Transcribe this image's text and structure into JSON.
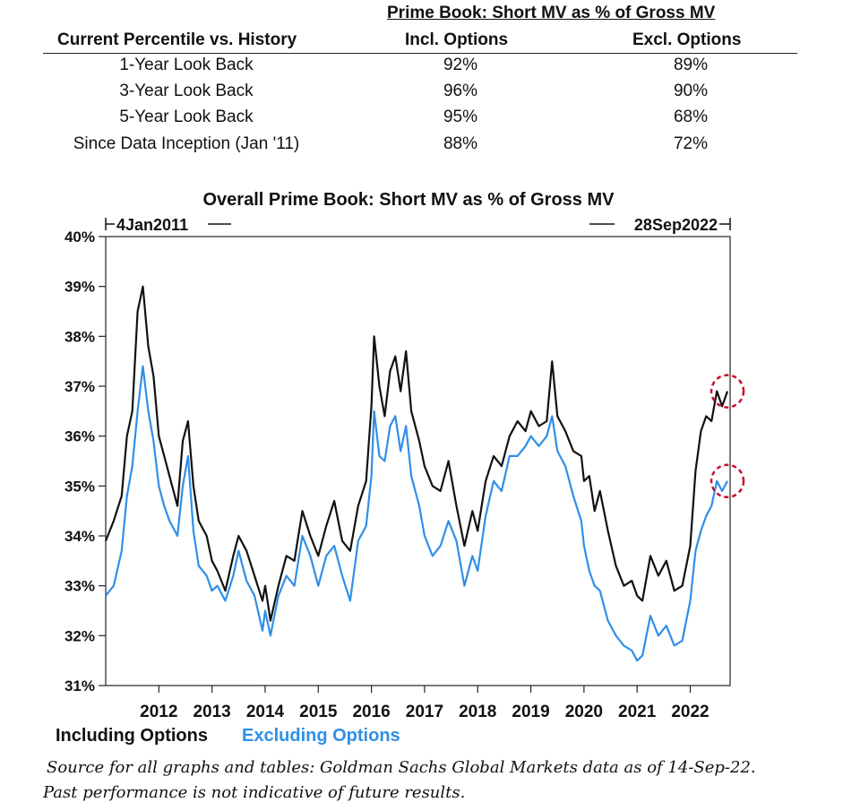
{
  "table": {
    "title": "Prime Book: Short MV as % of Gross MV",
    "header": [
      "Current Percentile vs. History",
      "Incl. Options",
      "Excl. Options"
    ],
    "rows": [
      {
        "label": "1-Year Look Back",
        "incl": "92%",
        "excl": "89%"
      },
      {
        "label": "3-Year Look Back",
        "incl": "96%",
        "excl": "90%"
      },
      {
        "label": "5-Year Look Back",
        "incl": "95%",
        "excl": "68%"
      },
      {
        "label": "Since Data Inception (Jan '11)",
        "incl": "88%",
        "excl": "72%"
      }
    ]
  },
  "legend": {
    "including": "Including Options",
    "excluding": "Excluding Options"
  },
  "footnote": {
    "line1": "Source for all graphs and tables: Goldman Sachs Global Markets data as of 14-Sep-22.",
    "line2": "Past performance is not indicative of future results."
  },
  "colors": {
    "including": "#111111",
    "excluding": "#2f8fe8",
    "highlight": "#c8102e"
  },
  "chart_data": {
    "type": "line",
    "title": "Overall Prime Book: Short MV as % of Gross MV",
    "start_label": "4Jan2011",
    "end_label": "28Sep2022",
    "xlim": [
      2011.0,
      2022.75
    ],
    "ylim": [
      31,
      40
    ],
    "yticks": [
      31,
      32,
      33,
      34,
      35,
      36,
      37,
      38,
      39,
      40
    ],
    "ytick_labels": [
      "31%",
      "32%",
      "33%",
      "34%",
      "35%",
      "36%",
      "37%",
      "38%",
      "39%",
      "40%"
    ],
    "xticks": [
      2012,
      2013,
      2014,
      2015,
      2016,
      2017,
      2018,
      2019,
      2020,
      2021,
      2022
    ],
    "xtick_labels": [
      "2012",
      "2013",
      "2014",
      "2015",
      "2016",
      "2017",
      "2018",
      "2019",
      "2020",
      "2021",
      "2022"
    ],
    "highlights": [
      {
        "x": 2022.7,
        "y": 36.9,
        "series": "Including Options"
      },
      {
        "x": 2022.7,
        "y": 35.1,
        "series": "Excluding Options"
      }
    ],
    "series": [
      {
        "name": "Including Options",
        "x": [
          2011.0,
          2011.15,
          2011.3,
          2011.4,
          2011.5,
          2011.6,
          2011.7,
          2011.8,
          2011.9,
          2012.0,
          2012.1,
          2012.2,
          2012.35,
          2012.45,
          2012.55,
          2012.65,
          2012.75,
          2012.9,
          2013.0,
          2013.1,
          2013.25,
          2013.4,
          2013.5,
          2013.65,
          2013.8,
          2013.95,
          2014.0,
          2014.1,
          2014.25,
          2014.4,
          2014.55,
          2014.7,
          2014.85,
          2015.0,
          2015.15,
          2015.3,
          2015.45,
          2015.6,
          2015.75,
          2015.9,
          2016.0,
          2016.05,
          2016.15,
          2016.25,
          2016.35,
          2016.45,
          2016.55,
          2016.65,
          2016.75,
          2016.9,
          2017.0,
          2017.15,
          2017.3,
          2017.45,
          2017.6,
          2017.75,
          2017.9,
          2018.0,
          2018.15,
          2018.3,
          2018.45,
          2018.6,
          2018.75,
          2018.9,
          2019.0,
          2019.15,
          2019.3,
          2019.4,
          2019.5,
          2019.65,
          2019.8,
          2019.95,
          2020.0,
          2020.1,
          2020.2,
          2020.3,
          2020.45,
          2020.6,
          2020.75,
          2020.9,
          2021.0,
          2021.1,
          2021.25,
          2021.4,
          2021.55,
          2021.7,
          2021.85,
          2022.0,
          2022.1,
          2022.2,
          2022.3,
          2022.4,
          2022.5,
          2022.6,
          2022.7
        ],
        "y": [
          33.9,
          34.3,
          34.8,
          36.0,
          36.5,
          38.5,
          39.0,
          37.8,
          37.2,
          36.0,
          35.6,
          35.2,
          34.6,
          35.9,
          36.3,
          35.0,
          34.3,
          34.0,
          33.5,
          33.3,
          32.9,
          33.6,
          34.0,
          33.7,
          33.2,
          32.7,
          33.0,
          32.3,
          33.0,
          33.6,
          33.5,
          34.5,
          34.0,
          33.6,
          34.2,
          34.7,
          33.9,
          33.7,
          34.6,
          35.1,
          36.6,
          38.0,
          37.0,
          36.4,
          37.3,
          37.6,
          36.9,
          37.7,
          36.5,
          35.9,
          35.4,
          35.0,
          34.9,
          35.5,
          34.6,
          33.8,
          34.5,
          34.1,
          35.1,
          35.6,
          35.4,
          36.0,
          36.3,
          36.1,
          36.5,
          36.2,
          36.3,
          37.5,
          36.4,
          36.1,
          35.7,
          35.6,
          35.1,
          35.2,
          34.5,
          34.9,
          34.1,
          33.4,
          33.0,
          33.1,
          32.8,
          32.7,
          33.6,
          33.2,
          33.5,
          32.9,
          33.0,
          33.8,
          35.3,
          36.1,
          36.4,
          36.3,
          36.9,
          36.6,
          36.9
        ]
      },
      {
        "name": "Excluding Options",
        "x": [
          2011.0,
          2011.15,
          2011.3,
          2011.4,
          2011.5,
          2011.6,
          2011.7,
          2011.8,
          2011.9,
          2012.0,
          2012.1,
          2012.2,
          2012.35,
          2012.45,
          2012.55,
          2012.65,
          2012.75,
          2012.9,
          2013.0,
          2013.1,
          2013.25,
          2013.4,
          2013.5,
          2013.65,
          2013.8,
          2013.95,
          2014.0,
          2014.1,
          2014.25,
          2014.4,
          2014.55,
          2014.7,
          2014.85,
          2015.0,
          2015.15,
          2015.3,
          2015.45,
          2015.6,
          2015.75,
          2015.9,
          2016.0,
          2016.05,
          2016.15,
          2016.25,
          2016.35,
          2016.45,
          2016.55,
          2016.65,
          2016.75,
          2016.9,
          2017.0,
          2017.15,
          2017.3,
          2017.45,
          2017.6,
          2017.75,
          2017.9,
          2018.0,
          2018.15,
          2018.3,
          2018.45,
          2018.6,
          2018.75,
          2018.9,
          2019.0,
          2019.15,
          2019.3,
          2019.4,
          2019.5,
          2019.65,
          2019.8,
          2019.95,
          2020.0,
          2020.1,
          2020.2,
          2020.3,
          2020.45,
          2020.6,
          2020.75,
          2020.9,
          2021.0,
          2021.1,
          2021.25,
          2021.4,
          2021.55,
          2021.7,
          2021.85,
          2022.0,
          2022.1,
          2022.2,
          2022.3,
          2022.4,
          2022.5,
          2022.6,
          2022.7
        ],
        "y": [
          32.8,
          33.0,
          33.7,
          34.8,
          35.4,
          36.5,
          37.4,
          36.5,
          35.9,
          35.0,
          34.6,
          34.3,
          34.0,
          35.0,
          35.6,
          34.1,
          33.4,
          33.2,
          32.9,
          33.0,
          32.7,
          33.2,
          33.7,
          33.1,
          32.8,
          32.1,
          32.5,
          32.0,
          32.8,
          33.2,
          33.0,
          34.0,
          33.6,
          33.0,
          33.6,
          33.8,
          33.2,
          32.7,
          33.9,
          34.2,
          35.2,
          36.5,
          35.6,
          35.5,
          36.2,
          36.4,
          35.7,
          36.2,
          35.2,
          34.6,
          34.0,
          33.6,
          33.8,
          34.3,
          33.9,
          33.0,
          33.6,
          33.3,
          34.4,
          35.1,
          34.9,
          35.6,
          35.6,
          35.8,
          36.0,
          35.8,
          36.0,
          36.4,
          35.7,
          35.4,
          34.8,
          34.3,
          33.8,
          33.3,
          33.0,
          32.9,
          32.3,
          32.0,
          31.8,
          31.7,
          31.5,
          31.6,
          32.4,
          32.0,
          32.2,
          31.8,
          31.9,
          32.7,
          33.7,
          34.1,
          34.4,
          34.6,
          35.1,
          34.9,
          35.1
        ]
      }
    ]
  }
}
